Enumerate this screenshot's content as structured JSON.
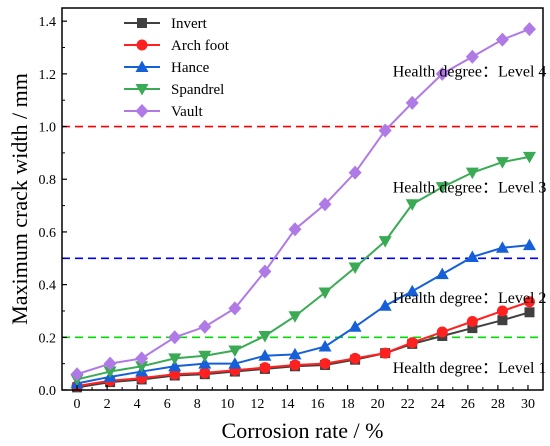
{
  "chart_data": {
    "type": "line",
    "xlabel": "Corrosion rate / %",
    "ylabel": "Maximum crack width / mm",
    "xlim": [
      -1,
      31
    ],
    "ylim": [
      0,
      1.45
    ],
    "xticks": [
      0,
      2,
      4,
      6,
      8,
      10,
      12,
      14,
      16,
      18,
      20,
      22,
      24,
      26,
      28,
      30
    ],
    "yticks": [
      0.0,
      0.2,
      0.4,
      0.6,
      0.8,
      1.0,
      1.2,
      1.4
    ],
    "ytick_labels": [
      "0.0",
      "0.2",
      "0.4",
      "0.6",
      "0.8",
      "1.0",
      "1.2",
      "1.4"
    ],
    "legend_position": "top-left",
    "grid": false,
    "series": [
      {
        "name": "Invert",
        "color": "#404040",
        "marker": "square",
        "x": [
          0,
          2.2,
          4.3,
          6.5,
          8.5,
          10.5,
          12.5,
          14.5,
          16.5,
          18.5,
          20.5,
          22.3,
          24.3,
          26.3,
          28.3,
          30.1
        ],
        "values": [
          0.01,
          0.03,
          0.04,
          0.055,
          0.06,
          0.07,
          0.08,
          0.09,
          0.095,
          0.115,
          0.14,
          0.175,
          0.205,
          0.235,
          0.265,
          0.295
        ]
      },
      {
        "name": "Arch foot",
        "color": "#ff2020",
        "marker": "circle",
        "x": [
          0,
          2.2,
          4.3,
          6.5,
          8.5,
          10.5,
          12.5,
          14.5,
          16.5,
          18.5,
          20.5,
          22.3,
          24.3,
          26.3,
          28.3,
          30.1
        ],
        "values": [
          0.015,
          0.035,
          0.045,
          0.06,
          0.065,
          0.075,
          0.085,
          0.095,
          0.1,
          0.12,
          0.14,
          0.18,
          0.22,
          0.26,
          0.3,
          0.335
        ]
      },
      {
        "name": "Hance",
        "color": "#1560d8",
        "marker": "triangle-up",
        "x": [
          0,
          2.2,
          4.3,
          6.5,
          8.5,
          10.5,
          12.5,
          14.5,
          16.5,
          18.5,
          20.5,
          22.3,
          24.3,
          26.3,
          28.3,
          30.1
        ],
        "values": [
          0.025,
          0.05,
          0.07,
          0.09,
          0.1,
          0.1,
          0.13,
          0.135,
          0.165,
          0.24,
          0.32,
          0.375,
          0.44,
          0.505,
          0.54,
          0.55
        ]
      },
      {
        "name": "Spandrel",
        "color": "#3aaa55",
        "marker": "triangle-down",
        "x": [
          0,
          2.2,
          4.3,
          6.5,
          8.5,
          10.5,
          12.5,
          14.5,
          16.5,
          18.5,
          20.5,
          22.3,
          24.3,
          26.3,
          28.3,
          30.1
        ],
        "values": [
          0.04,
          0.07,
          0.09,
          0.12,
          0.13,
          0.15,
          0.205,
          0.28,
          0.37,
          0.465,
          0.565,
          0.705,
          0.77,
          0.825,
          0.865,
          0.885
        ]
      },
      {
        "name": "Vault",
        "color": "#b07ae6",
        "marker": "diamond",
        "x": [
          0,
          2.2,
          4.3,
          6.5,
          8.5,
          10.5,
          12.5,
          14.5,
          16.5,
          18.5,
          20.5,
          22.3,
          24.3,
          26.3,
          28.3,
          30.1
        ],
        "values": [
          0.06,
          0.1,
          0.12,
          0.2,
          0.24,
          0.31,
          0.45,
          0.61,
          0.705,
          0.825,
          0.985,
          1.09,
          1.2,
          1.265,
          1.33,
          1.37
        ]
      }
    ],
    "thresholds": [
      {
        "value": 1.0,
        "color": "#ff0000"
      },
      {
        "value": 0.5,
        "color": "#0000ff"
      },
      {
        "value": 0.2,
        "color": "#00dd00"
      }
    ],
    "annotations": [
      {
        "text": "Health degree：Level 4",
        "x": 21,
        "y": 1.19
      },
      {
        "text": "Health degree：Level 3",
        "x": 21,
        "y": 0.75
      },
      {
        "text": "Health degree：Level 2",
        "x": 21,
        "y": 0.33
      },
      {
        "text": "Health degree：Level 1",
        "x": 21,
        "y": 0.065
      }
    ]
  }
}
